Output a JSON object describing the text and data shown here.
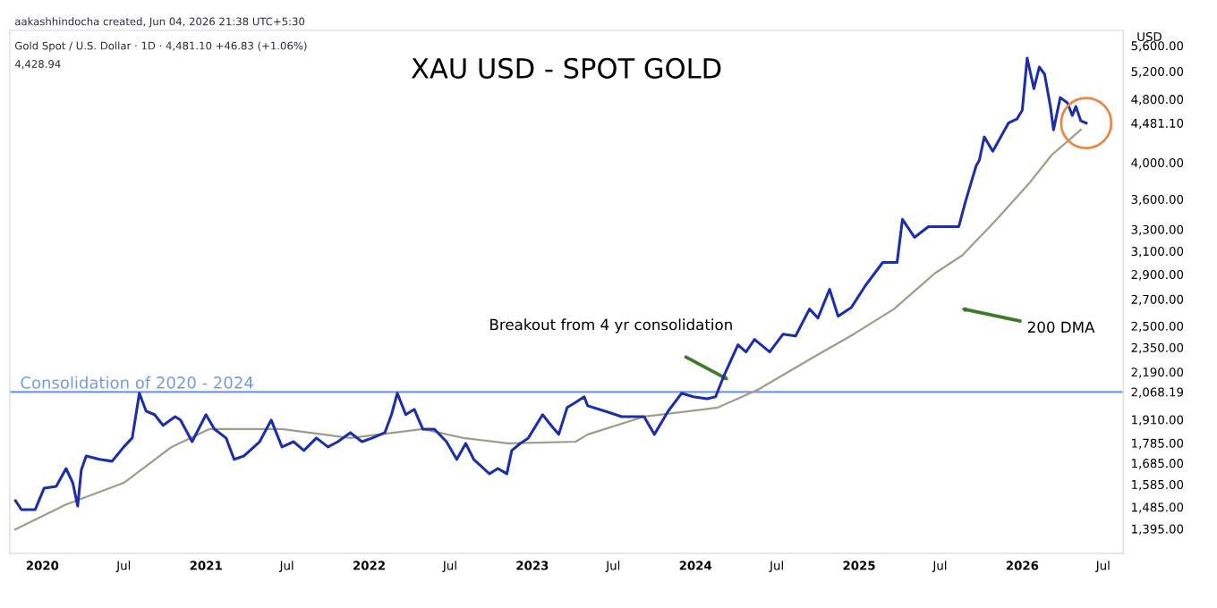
{
  "chart_data": {
    "type": "line",
    "title": "XAU USD - SPOT GOLD",
    "subtitle": "Gold Spot / U.S. Dollar · 1D · 4,481.10 +46.83 (+1.06%)",
    "ylabel": "USD",
    "log": "y",
    "xlim": [
      "2019-10-20",
      "2026-08-15"
    ],
    "xticks": [
      {
        "value": "2020-01-01",
        "label": "2020"
      },
      {
        "value": "2020-07-01",
        "label": "Jul"
      },
      {
        "value": "2021-01-01",
        "label": "2021"
      },
      {
        "value": "2021-07-01",
        "label": "Jul"
      },
      {
        "value": "2022-01-01",
        "label": "2022"
      },
      {
        "value": "2022-07-01",
        "label": "Jul"
      },
      {
        "value": "2023-01-01",
        "label": "2023"
      },
      {
        "value": "2023-07-01",
        "label": "Jul"
      },
      {
        "value": "2024-01-01",
        "label": "2024"
      },
      {
        "value": "2024-07-01",
        "label": "Jul"
      },
      {
        "value": "2025-01-01",
        "label": "2025"
      },
      {
        "value": "2025-07-01",
        "label": "Jul"
      },
      {
        "value": "2026-01-01",
        "label": "2026"
      },
      {
        "value": "2026-07-01",
        "label": "Jul"
      }
    ],
    "ylim": [
      1300,
      5850
    ],
    "yticks": [
      {
        "value": 1395,
        "label": "1,395.00"
      },
      {
        "value": 1485,
        "label": "1,485.00"
      },
      {
        "value": 1585,
        "label": "1,585.00"
      },
      {
        "value": 1685,
        "label": "1,685.00"
      },
      {
        "value": 1785,
        "label": "1,785.00"
      },
      {
        "value": 1910,
        "label": "1,910.00"
      },
      {
        "value": 2068.19,
        "label": "2,068.19"
      },
      {
        "value": 2190,
        "label": "2,190.00"
      },
      {
        "value": 2350,
        "label": "2,350.00"
      },
      {
        "value": 2500,
        "label": "2,500.00"
      },
      {
        "value": 2700,
        "label": "2,700.00"
      },
      {
        "value": 2900,
        "label": "2,900.00"
      },
      {
        "value": 3100,
        "label": "3,100.00"
      },
      {
        "value": 3300,
        "label": "3,300.00"
      },
      {
        "value": 3600,
        "label": "3,600.00"
      },
      {
        "value": 4000,
        "label": "4,000.00"
      },
      {
        "value": 4481.1,
        "label": "4,481.10"
      },
      {
        "value": 4800,
        "label": "4,800.00"
      },
      {
        "value": 5200,
        "label": "5,200.00"
      },
      {
        "value": 5600,
        "label": "5,600.00"
      }
    ],
    "grid": false,
    "series": [
      {
        "color": "#1c2fa8",
        "x": [
          "2019-11-02",
          "2019-11-15",
          "2019-12-16",
          "2020-01-05",
          "2020-02-01",
          "2020-02-23",
          "2020-03-09",
          "2020-03-20",
          "2020-03-28",
          "2020-04-08",
          "2020-05-08",
          "2020-06-05",
          "2020-07-01",
          "2020-07-20",
          "2020-08-05",
          "2020-08-20",
          "2020-09-08",
          "2020-09-27",
          "2020-10-24",
          "2020-11-05",
          "2020-12-01",
          "2021-01-01",
          "2021-01-20",
          "2021-02-15",
          "2021-03-05",
          "2021-03-27",
          "2021-05-01",
          "2021-05-27",
          "2021-06-20",
          "2021-07-16",
          "2021-08-08",
          "2021-09-05",
          "2021-10-01",
          "2021-10-23",
          "2021-11-20",
          "2021-12-16",
          "2022-01-08",
          "2022-02-05",
          "2022-02-20",
          "2022-03-05",
          "2022-03-24",
          "2022-04-12",
          "2022-05-01",
          "2022-05-27",
          "2022-06-23",
          "2022-07-16",
          "2022-08-05",
          "2022-08-23",
          "2022-09-27",
          "2022-10-16",
          "2022-11-05",
          "2022-11-16",
          "2022-12-05",
          "2022-12-23",
          "2023-01-24",
          "2023-02-12",
          "2023-03-01",
          "2023-03-20",
          "2023-04-08",
          "2023-04-27",
          "2023-05-05",
          "2023-06-12",
          "2023-07-20",
          "2023-09-08",
          "2023-10-01",
          "2023-11-01",
          "2023-12-01",
          "2023-12-27",
          "2024-01-27",
          "2024-02-15",
          "2024-03-05",
          "2024-04-05",
          "2024-04-23",
          "2024-05-12",
          "2024-06-15",
          "2024-07-15",
          "2024-08-12",
          "2024-09-12",
          "2024-10-01",
          "2024-10-27",
          "2024-11-15",
          "2024-12-15",
          "2025-01-15",
          "2025-02-05",
          "2025-02-23",
          "2025-03-27",
          "2025-04-08",
          "2025-05-05",
          "2025-06-05",
          "2025-07-12",
          "2025-08-12",
          "2025-08-27",
          "2025-09-20",
          "2025-09-27",
          "2025-10-08",
          "2025-10-27",
          "2025-12-01",
          "2025-12-20",
          "2026-01-01",
          "2026-01-12",
          "2026-01-27",
          "2026-02-08",
          "2026-02-20",
          "2026-03-05",
          "2026-03-12",
          "2026-03-27",
          "2026-04-12",
          "2026-04-23",
          "2026-05-01",
          "2026-05-12",
          "2026-05-24"
        ],
        "values": [
          1512,
          1474,
          1474,
          1568,
          1576,
          1659,
          1592,
          1489,
          1651,
          1720,
          1703,
          1694,
          1765,
          1811,
          2060,
          1957,
          1937,
          1878,
          1926,
          1907,
          1792,
          1937,
          1858,
          1811,
          1703,
          1720,
          1792,
          1907,
          1765,
          1792,
          1747,
          1811,
          1765,
          1792,
          1839,
          1792,
          1811,
          1839,
          1937,
          2060,
          1937,
          1967,
          1858,
          1858,
          1792,
          1703,
          1783,
          1703,
          1634,
          1659,
          1634,
          1747,
          1783,
          1811,
          1937,
          1878,
          1830,
          1977,
          2007,
          2039,
          1987,
          1957,
          1926,
          1926,
          1830,
          1957,
          2060,
          2039,
          2028,
          2039,
          2169,
          2368,
          2320,
          2405,
          2320,
          2442,
          2429,
          2625,
          2558,
          2778,
          2571,
          2638,
          2807,
          2910,
          3001,
          3001,
          3397,
          3226,
          3327,
          3327,
          3327,
          3576,
          3965,
          4026,
          4306,
          4132,
          4481,
          4533,
          4651,
          5402,
          4948,
          5264,
          5157,
          4699,
          4395,
          4822,
          4749,
          4580,
          4699,
          4510,
          4481
        ]
      },
      {
        "color": "#9a9e8a",
        "x": [
          "2019-11-01",
          "2020-02-23",
          "2020-07-01",
          "2020-10-16",
          "2021-01-08",
          "2021-06-20",
          "2021-11-20",
          "2022-05-01",
          "2022-07-31",
          "2022-11-08",
          "2023-04-08",
          "2023-05-05",
          "2023-09-08",
          "2024-02-20",
          "2024-05-20",
          "2024-09-20",
          "2024-12-20",
          "2025-03-20",
          "2025-06-20",
          "2025-08-20",
          "2025-11-05",
          "2026-01-16",
          "2026-03-08",
          "2026-05-12"
        ],
        "values": [
          1392,
          1496,
          1592,
          1765,
          1858,
          1858,
          1811,
          1858,
          1811,
          1783,
          1792,
          1830,
          1926,
          1977,
          2082,
          2284,
          2442,
          2625,
          2910,
          3064,
          3397,
          3765,
          4089,
          4395
        ]
      }
    ],
    "ref_lines": [
      {
        "axis": "y",
        "value": 2068.19,
        "label": "Consolidation of 2020 - 2024",
        "color": "#6f9ce0"
      }
    ],
    "annotations": [
      "aakashhindocha created, Jun 04, 2026 21:38 UTC+5:30",
      "4,428.94",
      "Breakout from 4 yr consolidation",
      "200 DMA"
    ]
  }
}
